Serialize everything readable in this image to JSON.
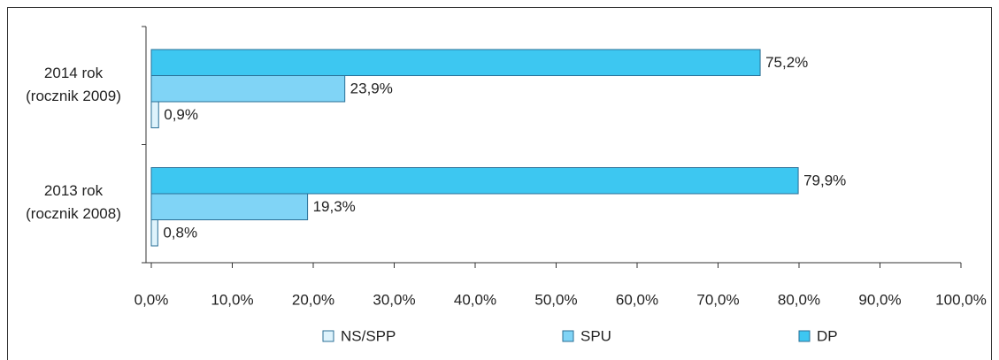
{
  "chart_data": {
    "type": "hbar",
    "categories": [
      "2014 rok\n(rocznik 2009)",
      "2013 rok\n(rocznik 2008)"
    ],
    "series": [
      {
        "name": "NS/SPP",
        "color": "#def3fc",
        "values": [
          0.9,
          0.8
        ],
        "value_labels": [
          "0,9%",
          "0,8%"
        ]
      },
      {
        "name": "SPU",
        "color": "#80d4f6",
        "values": [
          23.9,
          19.3
        ],
        "value_labels": [
          "23,9%",
          "19,3%"
        ]
      },
      {
        "name": "DP",
        "color": "#3dc7f1",
        "values": [
          75.2,
          79.9
        ],
        "value_labels": [
          "75,2%",
          "79,9%"
        ]
      }
    ],
    "xlim": [
      0,
      100
    ],
    "xticks": [
      {
        "value": 0,
        "label": "0,0%"
      },
      {
        "value": 10,
        "label": "10,0%"
      },
      {
        "value": 20,
        "label": "20,0%"
      },
      {
        "value": 30,
        "label": "30,0%"
      },
      {
        "value": 40,
        "label": "40,0%"
      },
      {
        "value": 50,
        "label": "50,0%"
      },
      {
        "value": 60,
        "label": "60,0%"
      },
      {
        "value": 70,
        "label": "70,0%"
      },
      {
        "value": 80,
        "label": "80,0%"
      },
      {
        "value": 90,
        "label": "90,0%"
      },
      {
        "value": 100,
        "label": "100,0%"
      }
    ],
    "legend": "bottom"
  }
}
